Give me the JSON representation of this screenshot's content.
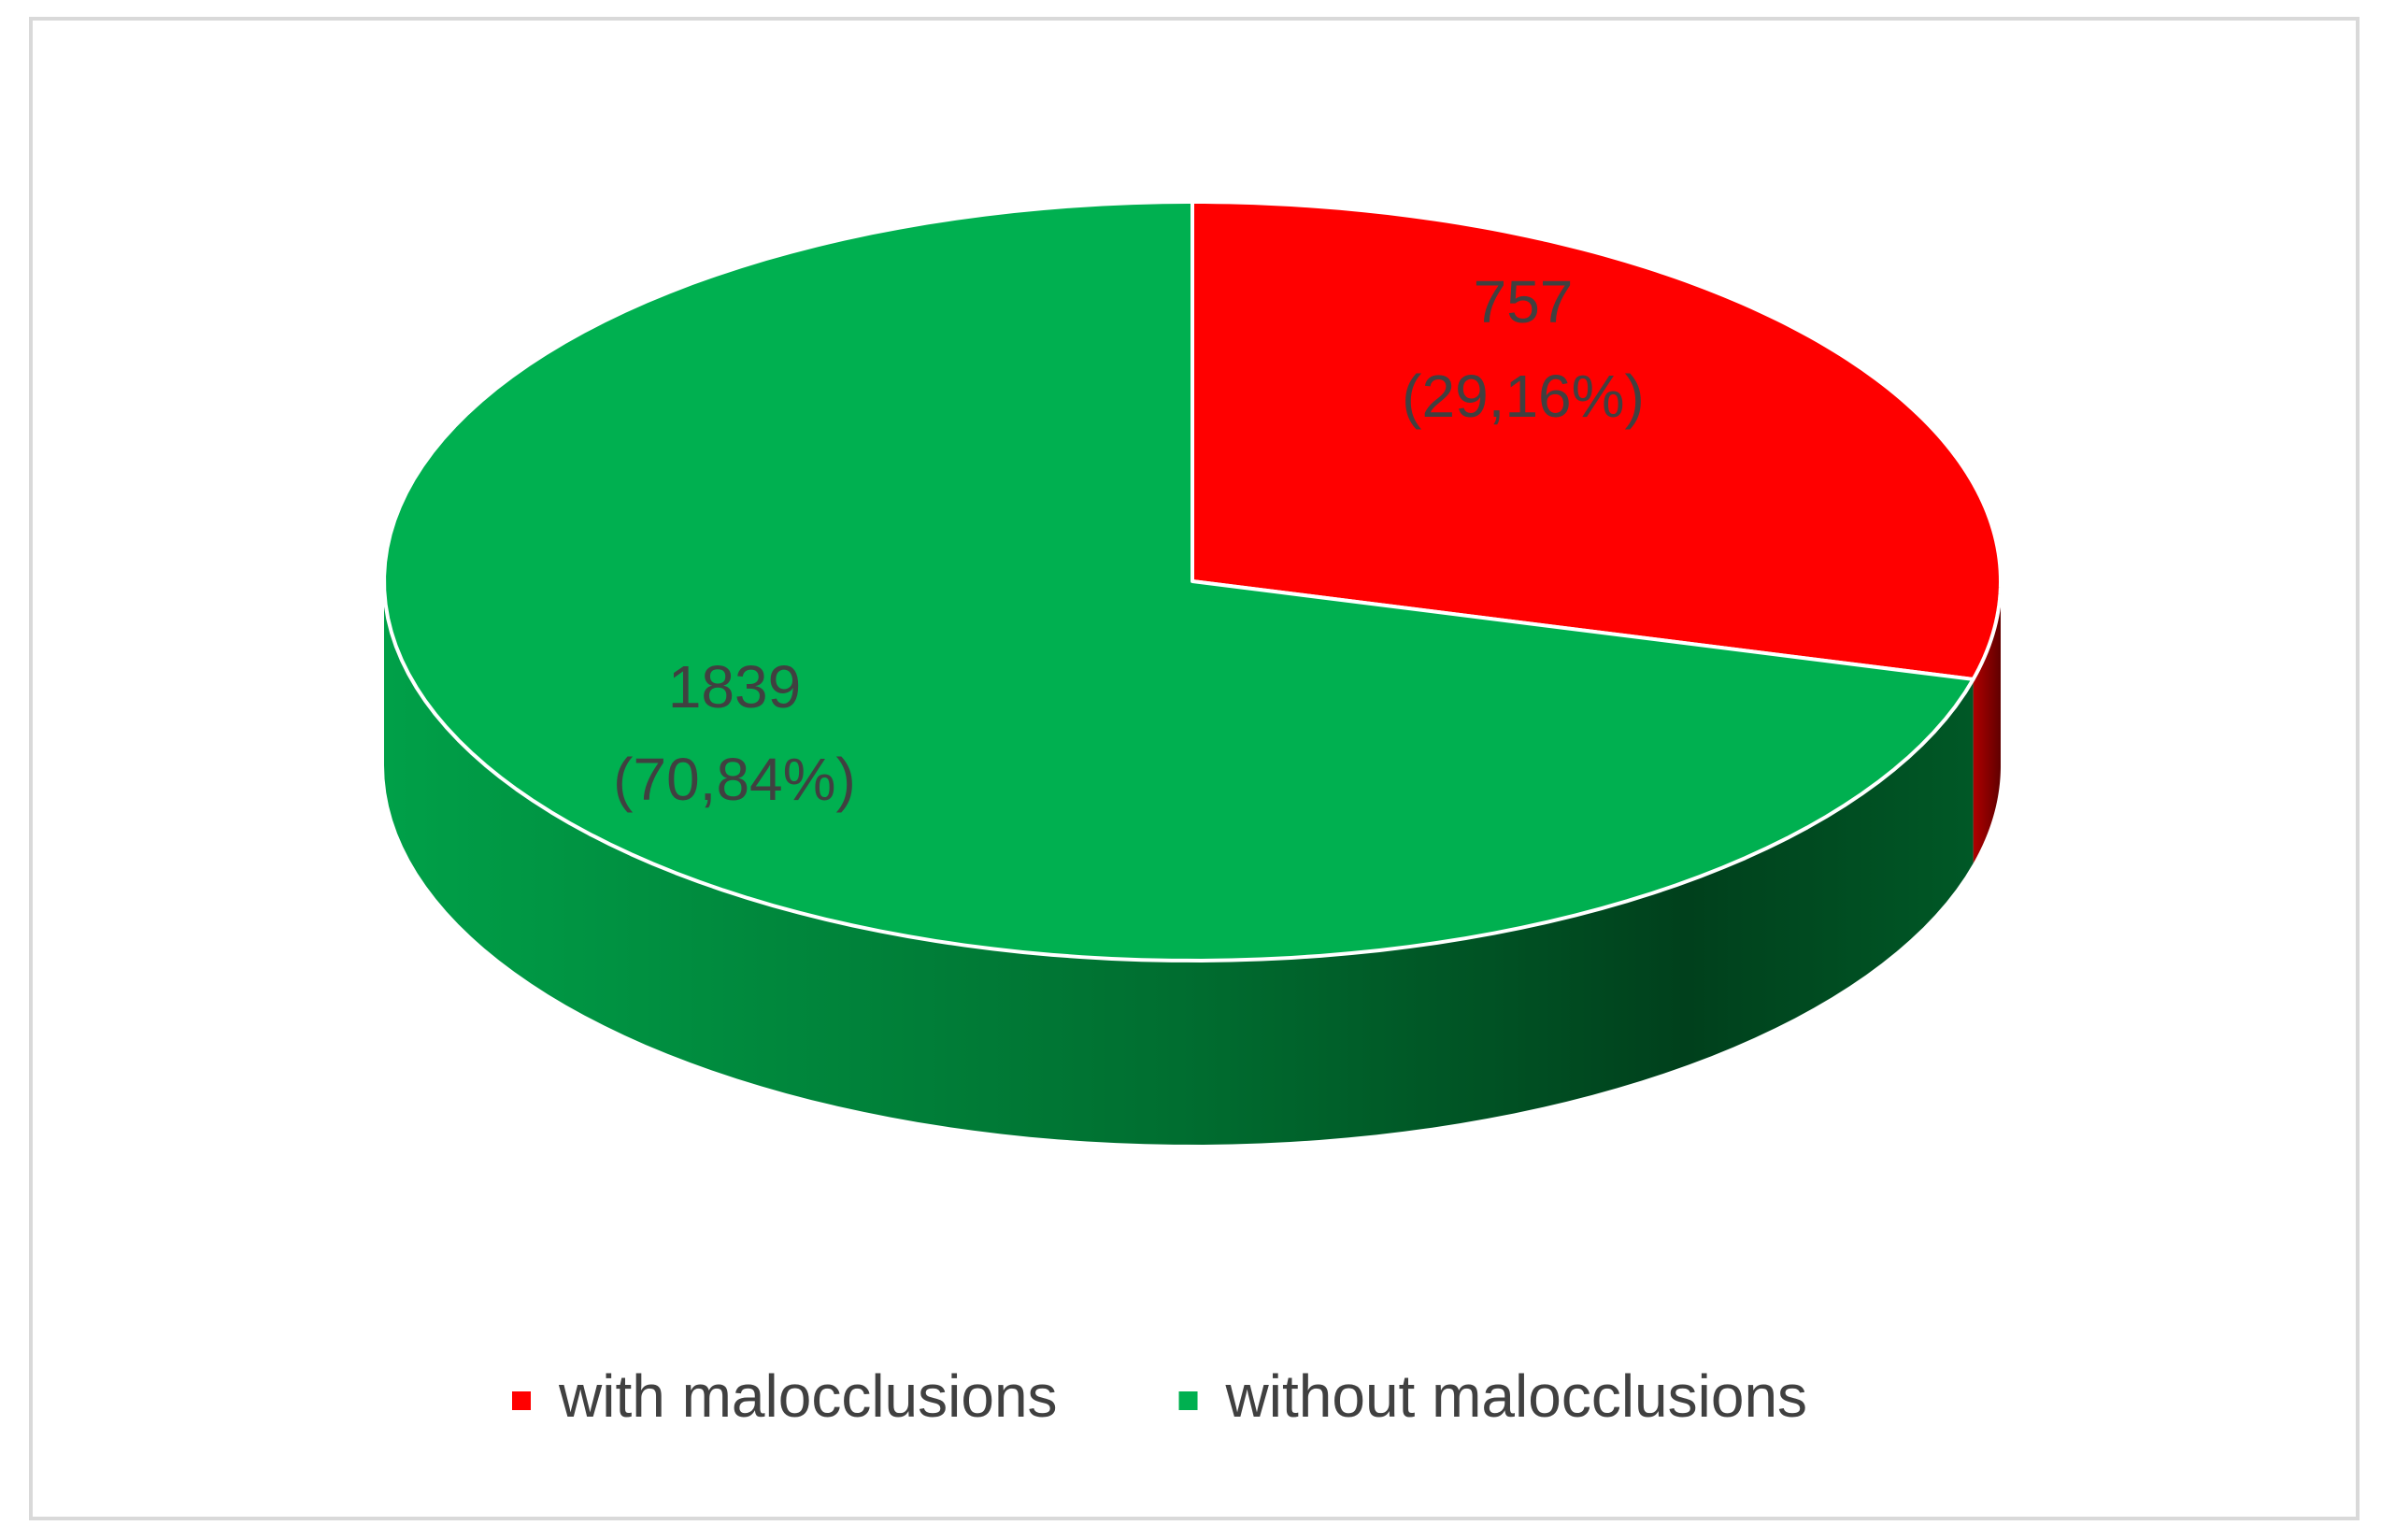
{
  "chart_data": {
    "type": "pie3d",
    "categories": [
      "with malocclusions",
      "without malocclusions"
    ],
    "values": [
      757,
      1839
    ],
    "percentages": [
      29.16,
      70.84
    ],
    "percentage_labels": [
      "(29,16%)",
      "(70,84%)"
    ],
    "colors": [
      "#ff0000",
      "#00b050"
    ],
    "legend": "bottom"
  }
}
